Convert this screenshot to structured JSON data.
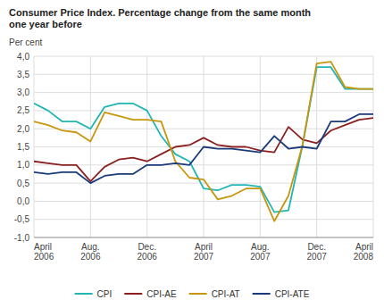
{
  "chart_data": {
    "type": "line",
    "title": "Consumer Price Index. Percentage change from the same month\none year before",
    "ylabel": "Per cent",
    "categories": [
      "April\n2006",
      null,
      null,
      null,
      "Aug.\n2006",
      null,
      null,
      null,
      "Dec.\n2006",
      null,
      null,
      null,
      "April\n2007",
      null,
      null,
      null,
      "Aug.\n2007",
      null,
      null,
      null,
      "Dec.\n2007",
      null,
      null,
      null,
      "April\n2008"
    ],
    "ylim": [
      -1.0,
      4.0
    ],
    "yticks": [
      {
        "value": -1.0,
        "label": "-1,0"
      },
      {
        "value": -0.5,
        "label": "-0,5"
      },
      {
        "value": 0.0,
        "label": "0,0"
      },
      {
        "value": 0.5,
        "label": "0,5"
      },
      {
        "value": 1.0,
        "label": "1,0"
      },
      {
        "value": 1.5,
        "label": "1,5"
      },
      {
        "value": 2.0,
        "label": "2,0"
      },
      {
        "value": 2.5,
        "label": "2,5"
      },
      {
        "value": 3.0,
        "label": "3,0"
      },
      {
        "value": 3.5,
        "label": "3,5"
      },
      {
        "value": 4.0,
        "label": "4,0"
      }
    ],
    "grid": true,
    "legend": "bottom",
    "series": [
      {
        "name": "CPI",
        "color": "#21b5b5",
        "values": [
          2.7,
          2.5,
          2.2,
          2.2,
          2.0,
          2.6,
          2.7,
          2.7,
          2.5,
          1.8,
          1.3,
          1.1,
          0.35,
          0.3,
          0.45,
          0.45,
          0.4,
          -0.3,
          -0.25,
          1.55,
          3.7,
          3.7,
          3.1,
          3.1,
          3.1
        ]
      },
      {
        "name": "CPI-AE",
        "color": "#8b2020",
        "values": [
          1.1,
          1.05,
          1.0,
          1.0,
          0.55,
          0.95,
          1.15,
          1.2,
          1.1,
          1.3,
          1.5,
          1.55,
          1.75,
          1.55,
          1.5,
          1.5,
          1.4,
          1.35,
          2.05,
          1.7,
          1.6,
          1.95,
          2.1,
          2.25,
          2.3
        ]
      },
      {
        "name": "CPI-AT",
        "color": "#c8960c",
        "values": [
          2.2,
          2.1,
          1.95,
          1.9,
          1.65,
          2.45,
          2.35,
          2.25,
          2.25,
          2.2,
          1.1,
          0.65,
          0.6,
          0.05,
          0.15,
          0.35,
          0.35,
          -0.55,
          0.15,
          1.55,
          3.8,
          3.85,
          3.15,
          3.1,
          3.1
        ]
      },
      {
        "name": "CPI-ATE",
        "color": "#1a3a7a",
        "values": [
          0.8,
          0.75,
          0.8,
          0.8,
          0.5,
          0.7,
          0.75,
          0.75,
          1.0,
          1.0,
          1.05,
          1.0,
          1.5,
          1.45,
          1.45,
          1.4,
          1.35,
          1.8,
          1.45,
          1.5,
          1.45,
          2.2,
          2.2,
          2.4,
          2.4
        ]
      }
    ]
  }
}
